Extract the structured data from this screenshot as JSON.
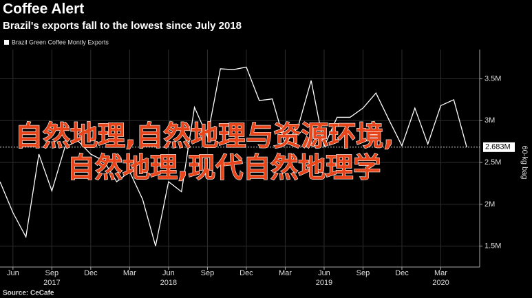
{
  "chart_data": {
    "type": "line",
    "title": "Coffee Alert",
    "subtitle": "Brazil's exports fall to the lowest since July 2018",
    "y_axis_label": "60-kg bag",
    "source": "Source: CeCafe",
    "x": [
      "2017-05",
      "2017-06",
      "2017-07",
      "2017-08",
      "2017-09",
      "2017-10",
      "2017-11",
      "2017-12",
      "2018-01",
      "2018-02",
      "2018-03",
      "2018-04",
      "2018-05",
      "2018-06",
      "2018-07",
      "2018-08",
      "2018-09",
      "2018-10",
      "2018-11",
      "2018-12",
      "2019-01",
      "2019-02",
      "2019-03",
      "2019-04",
      "2019-05",
      "2019-06",
      "2019-07",
      "2019-08",
      "2019-09",
      "2019-10",
      "2019-11",
      "2019-12",
      "2020-01",
      "2020-02",
      "2020-03",
      "2020-04",
      "2020-05"
    ],
    "series": [
      {
        "name": "Brazil Green Coffee Montly Exports",
        "color": "#ffffff",
        "values": [
          2.27,
          1.9,
          1.61,
          2.6,
          2.16,
          2.68,
          2.76,
          2.6,
          2.52,
          2.27,
          2.39,
          2.06,
          1.5,
          2.27,
          2.15,
          3.16,
          2.81,
          3.62,
          3.61,
          3.64,
          3.24,
          3.26,
          2.72,
          2.93,
          3.48,
          2.69,
          3.04,
          3.04,
          3.15,
          3.33,
          3.01,
          2.7,
          3.15,
          2.72,
          3.18,
          3.25,
          2.683
        ],
        "value_labels": [
          null,
          null,
          null,
          null,
          null,
          null,
          null,
          null,
          null,
          null,
          null,
          null,
          null,
          null,
          null,
          null,
          null,
          null,
          null,
          null,
          null,
          null,
          null,
          null,
          null,
          null,
          null,
          null,
          null,
          null,
          null,
          null,
          null,
          null,
          null,
          null,
          "2.683M"
        ]
      }
    ],
    "xlim": [
      "2017-05",
      "2020-06"
    ],
    "xticks": [
      {
        "value": "2017-06",
        "label": "Jun"
      },
      {
        "value": "2017-09",
        "label": "Sep"
      },
      {
        "value": "2017-12",
        "label": "Dec"
      },
      {
        "value": "2018-03",
        "label": "Mar"
      },
      {
        "value": "2018-06",
        "label": "Jun"
      },
      {
        "value": "2018-09",
        "label": "Sep"
      },
      {
        "value": "2018-12",
        "label": "Dec"
      },
      {
        "value": "2019-03",
        "label": "Mar"
      },
      {
        "value": "2019-06",
        "label": "Jun"
      },
      {
        "value": "2019-09",
        "label": "Sep"
      },
      {
        "value": "2019-12",
        "label": "Dec"
      },
      {
        "value": "2020-03",
        "label": "Mar"
      }
    ],
    "year_labels": [
      {
        "value": "2017-09",
        "label": "2017"
      },
      {
        "value": "2018-06",
        "label": "2018"
      },
      {
        "value": "2019-06",
        "label": "2019"
      },
      {
        "value": "2020-03",
        "label": "2020"
      }
    ],
    "ylim": [
      1.25,
      3.85
    ],
    "yticks": [
      {
        "value": 1.5,
        "label": "1.5M"
      },
      {
        "value": 2,
        "label": "2M"
      },
      {
        "value": 2.5,
        "label": "2.5M"
      },
      {
        "value": 3,
        "label": "3M"
      },
      {
        "value": 3.5,
        "label": "3.5M"
      }
    ],
    "grid": true,
    "overlay_lines": [
      "自然地理,自然地理与资源环境,",
      "自然地理,现代自然地理学"
    ]
  }
}
